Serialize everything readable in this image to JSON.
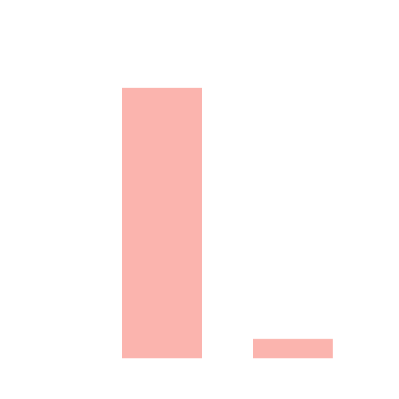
{
  "chart_data": {
    "type": "bar",
    "categories": [
      null,
      null
    ],
    "values": [
      14,
      1
    ],
    "color": "#fbb4ae",
    "ylim": [
      0,
      14
    ]
  }
}
